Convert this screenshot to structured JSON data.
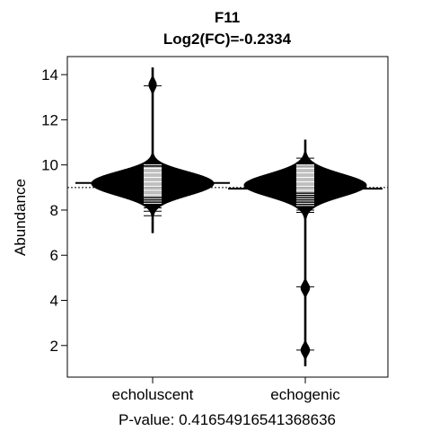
{
  "chart_data": {
    "type": "beanplot",
    "title": "F11",
    "subtitle": "Log2(FC)=-0.2334",
    "ylabel": "Abundance",
    "xlabel": "P-value: 0.41654916541368636",
    "ylim": [
      0.6,
      14.8
    ],
    "yticks": [
      2,
      4,
      6,
      8,
      10,
      12,
      14
    ],
    "categories": [
      "echoluscent",
      "echogenic"
    ],
    "overall_mean": 9.0,
    "groups": [
      {
        "name": "echoluscent",
        "mean": 9.2,
        "density": {
          "range": [
            7.0,
            14.3
          ],
          "bumps": [
            {
              "center": 9.05,
              "sd": 0.45,
              "height": 1.0,
              "width_in_data": 0.6
            },
            {
              "center": 9.55,
              "sd": 0.35,
              "height": 0.35
            },
            {
              "center": 13.55,
              "sd": 0.2,
              "height": 0.07
            }
          ]
        },
        "points": [
          13.5,
          10.0,
          9.9,
          9.85,
          9.8,
          9.75,
          9.7,
          9.65,
          9.6,
          9.55,
          9.5,
          9.45,
          9.4,
          9.35,
          9.3,
          9.25,
          9.2,
          9.15,
          9.1,
          9.05,
          9.0,
          8.95,
          8.9,
          8.85,
          8.8,
          8.75,
          8.7,
          8.65,
          8.6,
          8.5,
          8.4,
          8.3,
          8.2,
          8.1,
          7.95,
          7.75
        ]
      },
      {
        "name": "echogenic",
        "mean": 8.95,
        "density": {
          "range": [
            1.1,
            11.1
          ],
          "bumps": [
            {
              "center": 9.1,
              "sd": 0.5,
              "height": 1.0
            },
            {
              "center": 4.55,
              "sd": 0.2,
              "height": 0.07
            },
            {
              "center": 1.8,
              "sd": 0.2,
              "height": 0.07
            }
          ]
        },
        "points": [
          10.3,
          10.1,
          10.0,
          9.95,
          9.9,
          9.85,
          9.8,
          9.75,
          9.7,
          9.65,
          9.6,
          9.55,
          9.5,
          9.45,
          9.4,
          9.35,
          9.3,
          9.25,
          9.2,
          9.15,
          9.1,
          9.05,
          9.0,
          8.95,
          8.9,
          8.85,
          8.8,
          8.7,
          8.6,
          8.5,
          8.4,
          8.3,
          8.2,
          8.1,
          8.0,
          7.9,
          4.6,
          1.8
        ]
      }
    ]
  }
}
